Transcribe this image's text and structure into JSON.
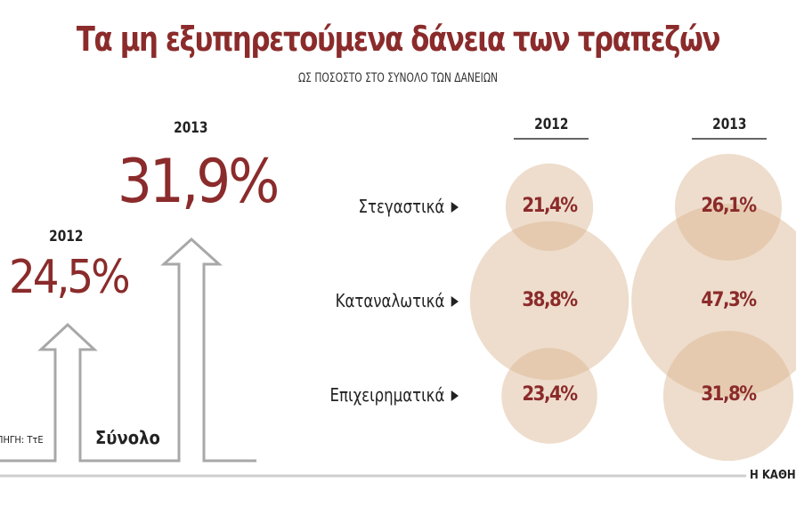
{
  "title": "Τα μη εξυπηρετούμενα δάνεια των τραπεζών",
  "subtitle": "ΩΣ ΠΟΣΟΣΤΟ ΣΤΟ ΣΥΝΟΛΟ ΤΩΝ ΔΑΝΕΙΩΝ",
  "source": "ΠΗΓΗ: ΤτΕ",
  "credit": "Η ΚΑΘΗ",
  "colors": {
    "accent": "#8b2b2b",
    "circle": "#d9b38f"
  },
  "chart_data": [
    {
      "type": "bar",
      "categories": [
        "2012",
        "2013"
      ],
      "values": [
        24.5,
        31.9
      ],
      "value_labels": [
        "24,5%",
        "31,9%"
      ],
      "xlabel": "Σύνολο"
    },
    {
      "type": "scatter",
      "columns": [
        "2012",
        "2013"
      ],
      "rows": [
        "Στεγαστικά",
        "Καταναλωτικά",
        "Επιχειρηματικά"
      ],
      "series": [
        {
          "name": "2012",
          "values": [
            21.4,
            38.8,
            23.4
          ],
          "labels": [
            "21,4%",
            "38,8%",
            "23,4%"
          ]
        },
        {
          "name": "2013",
          "values": [
            26.1,
            47.3,
            31.8
          ],
          "labels": [
            "26,1%",
            "47,3%",
            "31,8%"
          ]
        }
      ]
    }
  ]
}
